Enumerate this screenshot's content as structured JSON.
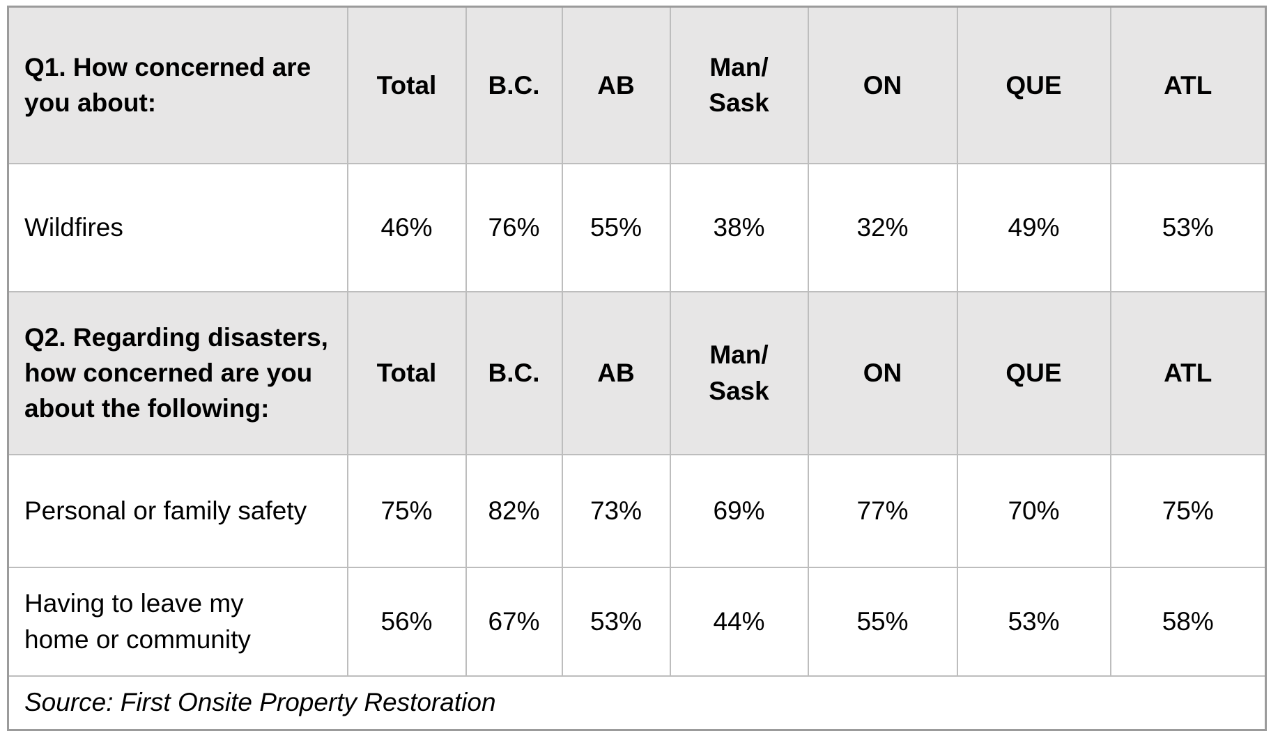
{
  "table": {
    "sections": [
      {
        "question": "Q1. How concerned are\nyou about:",
        "columns": [
          "Total",
          "B.C.",
          "AB",
          "Man/\nSask",
          "ON",
          "QUE",
          "ATL"
        ],
        "rows": [
          {
            "label": "Wildfires",
            "values": [
              "46%",
              "76%",
              "55%",
              "38%",
              "32%",
              "49%",
              "53%"
            ]
          }
        ]
      },
      {
        "question": "Q2. Regarding disasters,\nhow concerned are you\nabout the following:",
        "columns": [
          "Total",
          "B.C.",
          "AB",
          "Man/\nSask",
          "ON",
          "QUE",
          "ATL"
        ],
        "rows": [
          {
            "label": "Personal or family safety",
            "values": [
              "75%",
              "82%",
              "73%",
              "69%",
              "77%",
              "70%",
              "75%"
            ]
          },
          {
            "label": "Having to leave my\nhome or community",
            "values": [
              "56%",
              "67%",
              "53%",
              "44%",
              "55%",
              "53%",
              "58%"
            ]
          }
        ]
      }
    ],
    "source": "Source: First Onsite Property Restoration",
    "colors": {
      "header_background": "#E7E6E6",
      "inner_border": "#BDBDBD",
      "outer_border": "#9B9B9B",
      "text": "#000000",
      "page_background": "#FFFFFF"
    }
  },
  "chart_data": [
    {
      "type": "table",
      "title": "Q1. How concerned are you about:",
      "columns": [
        "Total",
        "B.C.",
        "AB",
        "Man/Sask",
        "ON",
        "QUE",
        "ATL"
      ],
      "rows": [
        {
          "label": "Wildfires",
          "values_pct": [
            46,
            76,
            55,
            38,
            32,
            49,
            53
          ]
        }
      ]
    },
    {
      "type": "table",
      "title": "Q2. Regarding disasters, how concerned are you about the following:",
      "columns": [
        "Total",
        "B.C.",
        "AB",
        "Man/Sask",
        "ON",
        "QUE",
        "ATL"
      ],
      "rows": [
        {
          "label": "Personal or family safety",
          "values_pct": [
            75,
            82,
            73,
            69,
            77,
            70,
            75
          ]
        },
        {
          "label": "Having to leave my home or community",
          "values_pct": [
            56,
            67,
            53,
            44,
            55,
            53,
            58
          ]
        }
      ],
      "source": "Source: First Onsite Property Restoration"
    }
  ]
}
